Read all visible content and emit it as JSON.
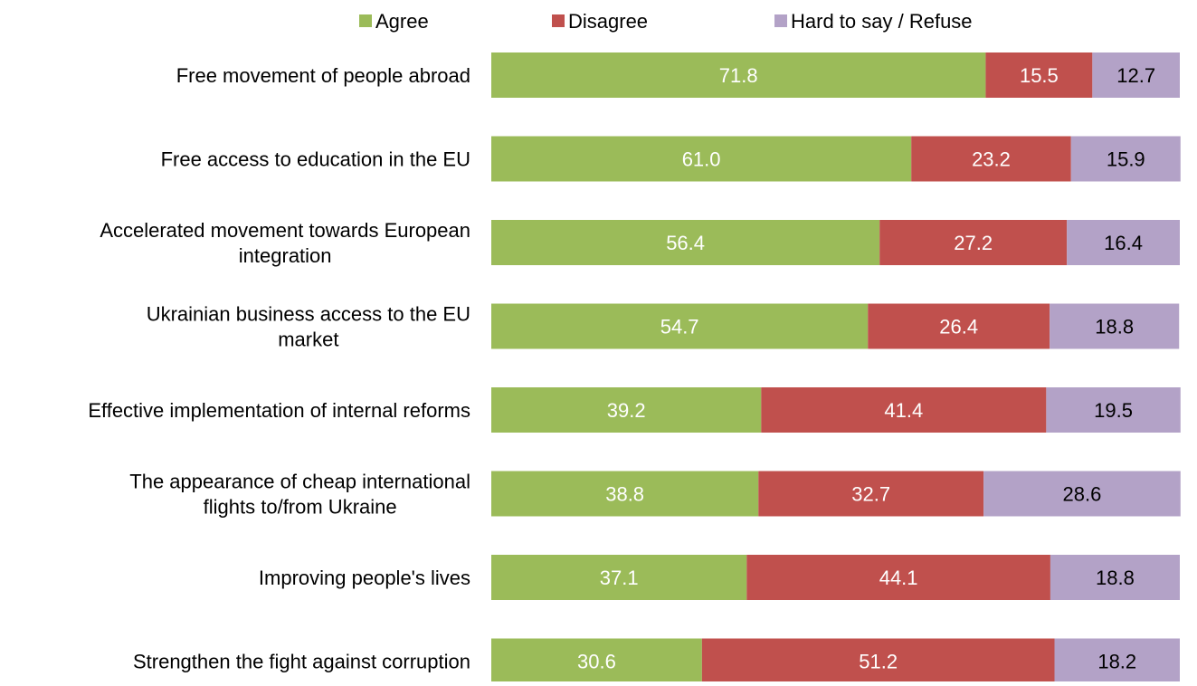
{
  "chart_data": {
    "type": "bar",
    "orientation": "horizontal",
    "stacked": true,
    "title": "",
    "xlabel": "",
    "ylabel": "",
    "xlim": [
      0,
      100
    ],
    "grid": false,
    "legend_position": "top",
    "categories": [
      [
        "Free movement of people abroad"
      ],
      [
        "Free access to education in the EU"
      ],
      [
        "Accelerated movement towards European",
        "integration"
      ],
      [
        "Ukrainian business access to the EU",
        "market"
      ],
      [
        "Effective implementation of internal reforms"
      ],
      [
        "The appearance of cheap international",
        "flights to/from Ukraine"
      ],
      [
        "Improving people's lives"
      ],
      [
        "Strengthen the fight against corruption"
      ]
    ],
    "series": [
      {
        "name": "Agree",
        "color": "#9bbb59",
        "label_color": "#ffffff",
        "values": [
          71.8,
          61.0,
          56.4,
          54.7,
          39.2,
          38.8,
          37.1,
          30.6
        ]
      },
      {
        "name": "Disagree",
        "color": "#c0504d",
        "label_color": "#ffffff",
        "values": [
          15.5,
          23.2,
          27.2,
          26.4,
          41.4,
          32.7,
          44.1,
          51.2
        ]
      },
      {
        "name": "Hard to say / Refuse",
        "color": "#b3a2c7",
        "label_color": "#000000",
        "values": [
          12.7,
          15.9,
          16.4,
          18.8,
          19.5,
          28.6,
          18.8,
          18.2
        ]
      }
    ]
  }
}
